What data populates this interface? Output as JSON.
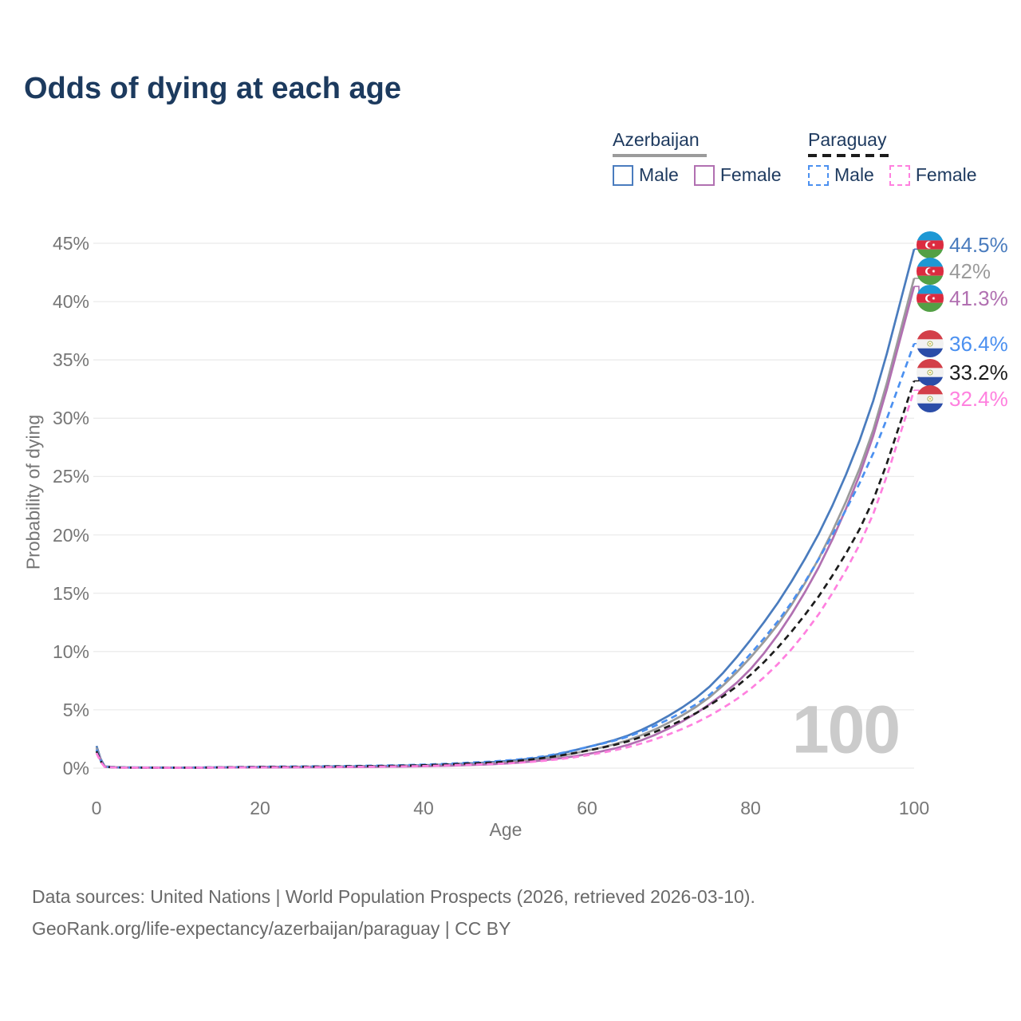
{
  "title": "Odds of dying at each age",
  "legend": {
    "azerbaijan": {
      "name": "Azerbaijan",
      "male_label": "Male",
      "female_label": "Female"
    },
    "paraguay": {
      "name": "Paraguay",
      "male_label": "Male",
      "female_label": "Female"
    }
  },
  "axis": {
    "y_tick_labels": [
      "0%",
      "5%",
      "10%",
      "15%",
      "20%",
      "25%",
      "30%",
      "35%",
      "40%",
      "45%"
    ],
    "x_tick_labels": [
      "0",
      "20",
      "40",
      "60",
      "80",
      "100"
    ]
  },
  "watermark": "100",
  "footer": {
    "line1": "Data sources: United Nations | World Population Prospects (2026, retrieved 2026-03-10).",
    "line2": "GeoRank.org/life-expectancy/azerbaijan/paraguay | CC BY"
  },
  "colors": {
    "title_text": "#1c3a5e",
    "legend_text": "#1e3a5f",
    "axis_text": "#767676",
    "grid": "#ebebeb",
    "watermark": "#cbcbcb",
    "footer_text": "#696969",
    "azerbaijan_male": "#4a7cbe",
    "azerbaijan_all": "#9b9b9b",
    "azerbaijan_female": "#b170b1",
    "paraguay_male": "#4b90f0",
    "paraguay_all": "#1c1c1c",
    "paraguay_female": "#ff80df"
  },
  "chart_data": {
    "type": "line",
    "title": "Odds of dying at each age",
    "xlabel": "Age",
    "ylabel": "Probability of dying",
    "xlim": [
      0,
      100
    ],
    "ylim": [
      0,
      45
    ],
    "x_ticks": [
      0,
      20,
      40,
      60,
      80,
      100
    ],
    "y_ticks": [
      0,
      5,
      10,
      15,
      20,
      25,
      30,
      35,
      40,
      45
    ],
    "grid": true,
    "legend_position": "top-right",
    "ages": [
      0,
      1,
      5,
      10,
      20,
      30,
      40,
      45,
      50,
      55,
      60,
      65,
      70,
      75,
      80,
      85,
      90,
      95,
      100
    ],
    "series": [
      {
        "id": "azerbaijan-male",
        "name": "Azerbaijan Male",
        "country": "Azerbaijan",
        "group": "Male",
        "style": "solid",
        "color": "#4a7cbe",
        "flag": "azerbaijan",
        "end_label": "44.5%",
        "values": [
          1.9,
          0.15,
          0.06,
          0.05,
          0.1,
          0.15,
          0.25,
          0.38,
          0.6,
          1.0,
          1.8,
          2.8,
          4.5,
          7.0,
          11.0,
          16.0,
          22.5,
          31.5,
          44.5
        ]
      },
      {
        "id": "azerbaijan-all",
        "name": "Azerbaijan",
        "country": "Azerbaijan",
        "group": "All",
        "style": "solid",
        "color": "#9b9b9b",
        "flag": "azerbaijan",
        "end_label": "42%",
        "values": [
          1.75,
          0.13,
          0.05,
          0.045,
          0.08,
          0.12,
          0.2,
          0.3,
          0.5,
          0.85,
          1.5,
          2.4,
          3.9,
          6.1,
          9.5,
          14.0,
          20.3,
          29.0,
          42.0
        ]
      },
      {
        "id": "azerbaijan-female",
        "name": "Azerbaijan Female",
        "country": "Azerbaijan",
        "group": "Female",
        "style": "solid",
        "color": "#b170b1",
        "flag": "azerbaijan",
        "end_label": "41.3%",
        "values": [
          1.6,
          0.11,
          0.045,
          0.04,
          0.06,
          0.09,
          0.16,
          0.25,
          0.4,
          0.7,
          1.2,
          2.0,
          3.4,
          5.5,
          8.5,
          13.2,
          19.6,
          28.5,
          41.3
        ]
      },
      {
        "id": "paraguay-male",
        "name": "Paraguay Male",
        "country": "Paraguay",
        "group": "Male",
        "style": "dashed",
        "color": "#4b90f0",
        "flag": "paraguay",
        "end_label": "36.4%",
        "values": [
          1.6,
          0.12,
          0.05,
          0.045,
          0.12,
          0.18,
          0.3,
          0.45,
          0.65,
          1.05,
          1.8,
          2.7,
          4.2,
          6.3,
          9.8,
          14.2,
          20.0,
          27.0,
          36.4
        ]
      },
      {
        "id": "paraguay-all",
        "name": "Paraguay",
        "country": "Paraguay",
        "group": "All",
        "style": "dashed",
        "color": "#1c1c1c",
        "flag": "paraguay",
        "end_label": "33.2%",
        "values": [
          1.45,
          0.11,
          0.045,
          0.04,
          0.1,
          0.15,
          0.25,
          0.38,
          0.55,
          0.9,
          1.5,
          2.3,
          3.6,
          5.4,
          8.0,
          11.7,
          16.5,
          23.0,
          33.2
        ]
      },
      {
        "id": "paraguay-female",
        "name": "Paraguay Female",
        "country": "Paraguay",
        "group": "Female",
        "style": "dashed",
        "color": "#ff80df",
        "flag": "paraguay",
        "end_label": "32.4%",
        "values": [
          1.3,
          0.1,
          0.04,
          0.035,
          0.07,
          0.1,
          0.18,
          0.28,
          0.4,
          0.65,
          1.1,
          1.8,
          2.9,
          4.5,
          6.8,
          10.2,
          15.0,
          21.8,
          32.4
        ]
      }
    ]
  }
}
